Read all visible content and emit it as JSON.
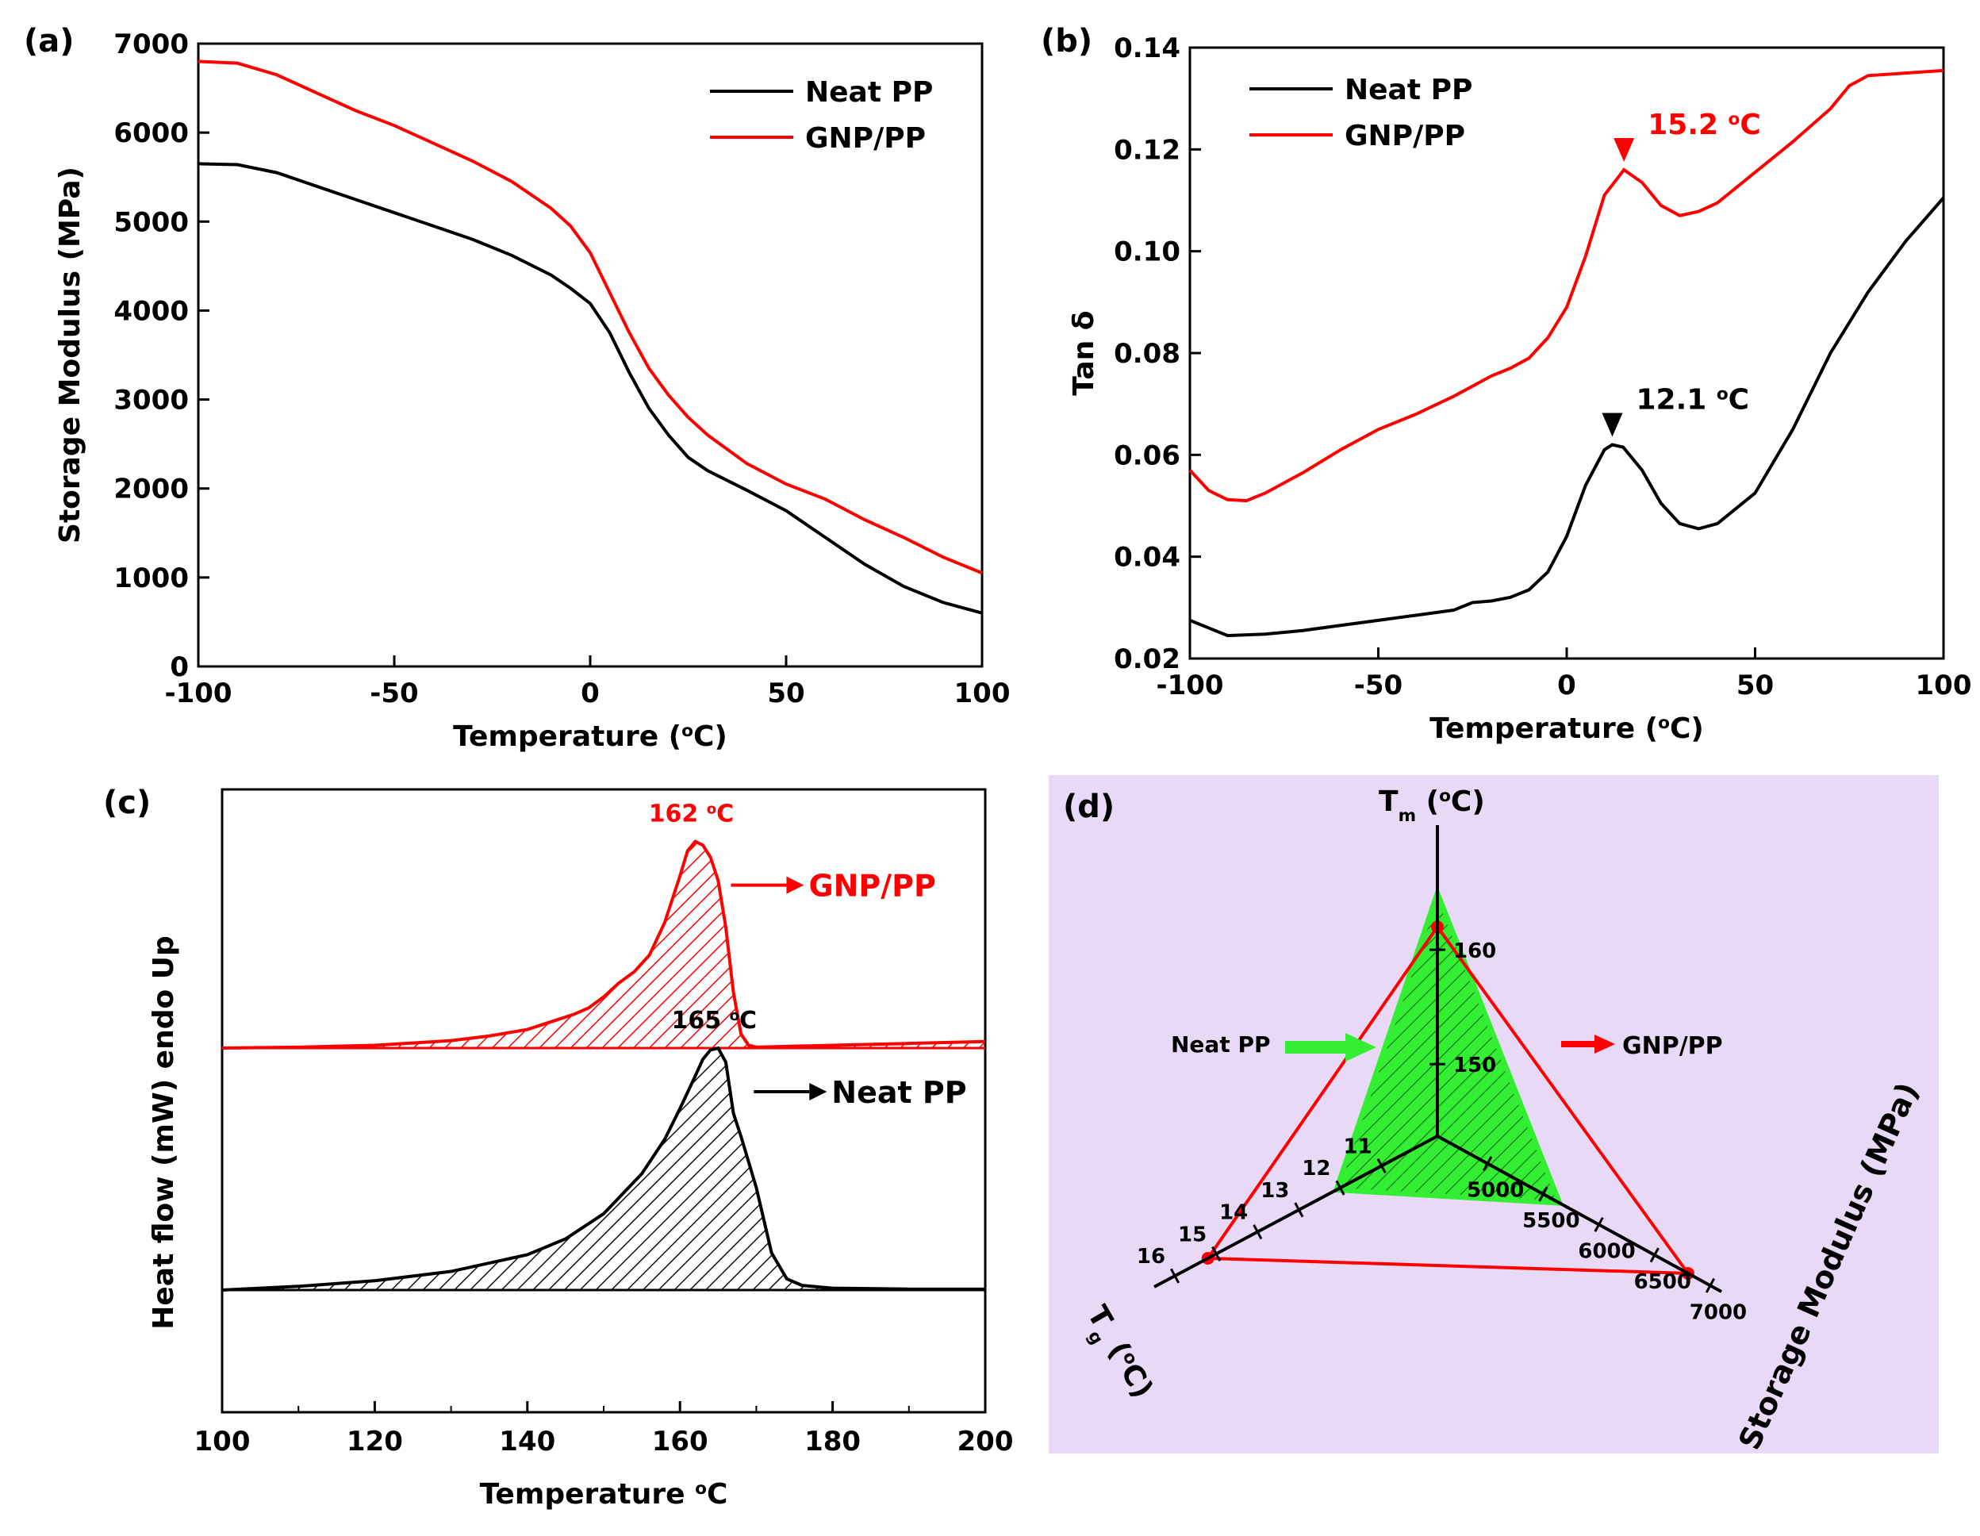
{
  "colors": {
    "neat": "#000000",
    "gnp": "#ff0000",
    "green": "#33ee33",
    "panel_d_bg": "#e8daf6"
  },
  "chart_data": [
    {
      "panel": "(a)",
      "type": "line",
      "xlabel_main": "Temperature (",
      "xlabel_sup": "o",
      "xlabel_end": "C)",
      "ylabel": "Storage Modulus (MPa)",
      "xlim": [
        -100,
        100
      ],
      "ylim": [
        0,
        7000
      ],
      "xticks": [
        -100,
        -50,
        0,
        50,
        100
      ],
      "yticks": [
        0,
        1000,
        2000,
        3000,
        4000,
        5000,
        6000,
        7000
      ],
      "legend": "top-right",
      "series": [
        {
          "name": "Neat PP",
          "key": "neat",
          "x": [
            -100,
            -90,
            -80,
            -70,
            -60,
            -50,
            -40,
            -30,
            -20,
            -10,
            -5,
            0,
            5,
            10,
            15,
            20,
            25,
            30,
            40,
            50,
            60,
            70,
            80,
            90,
            100
          ],
          "y": [
            5650,
            5640,
            5550,
            5400,
            5250,
            5100,
            4950,
            4800,
            4620,
            4400,
            4250,
            4080,
            3750,
            3300,
            2900,
            2600,
            2350,
            2200,
            1980,
            1750,
            1450,
            1150,
            900,
            720,
            600
          ]
        },
        {
          "name": "GNP/PP",
          "key": "gnp",
          "x": [
            -100,
            -90,
            -80,
            -70,
            -60,
            -50,
            -40,
            -30,
            -20,
            -10,
            -5,
            0,
            5,
            10,
            15,
            20,
            25,
            30,
            40,
            50,
            60,
            70,
            80,
            90,
            100
          ],
          "y": [
            6800,
            6780,
            6650,
            6450,
            6250,
            6080,
            5880,
            5680,
            5450,
            5150,
            4950,
            4650,
            4200,
            3750,
            3350,
            3050,
            2800,
            2600,
            2280,
            2050,
            1880,
            1650,
            1450,
            1230,
            1050
          ]
        }
      ]
    },
    {
      "panel": "(b)",
      "type": "line",
      "xlabel_main": "Temperature (",
      "xlabel_sup": "o",
      "xlabel_end": "C)",
      "ylabel": "Tan δ",
      "xlim": [
        -100,
        100
      ],
      "ylim": [
        0.02,
        0.14
      ],
      "xticks": [
        -100,
        -50,
        0,
        50,
        100
      ],
      "yticks": [
        0.02,
        0.04,
        0.06,
        0.08,
        0.1,
        0.12,
        0.14
      ],
      "ytick_labels": [
        "0.02",
        "0.04",
        "0.06",
        "0.08",
        "0.10",
        "0.12",
        "0.14"
      ],
      "legend": "top-left",
      "series": [
        {
          "name": "Neat PP",
          "key": "neat",
          "x": [
            -100,
            -90,
            -80,
            -70,
            -60,
            -50,
            -40,
            -30,
            -25,
            -20,
            -15,
            -10,
            -5,
            0,
            5,
            10,
            12.1,
            15,
            20,
            25,
            30,
            35,
            40,
            50,
            60,
            70,
            80,
            90,
            100
          ],
          "y": [
            0.0275,
            0.0245,
            0.0248,
            0.0255,
            0.0265,
            0.0275,
            0.0285,
            0.0295,
            0.031,
            0.0313,
            0.032,
            0.0335,
            0.037,
            0.044,
            0.054,
            0.061,
            0.062,
            0.0615,
            0.057,
            0.0505,
            0.0465,
            0.0455,
            0.0465,
            0.0525,
            0.065,
            0.08,
            0.092,
            0.102,
            0.1105
          ]
        },
        {
          "name": "GNP/PP",
          "key": "gnp",
          "x": [
            -100,
            -95,
            -90,
            -85,
            -80,
            -70,
            -60,
            -50,
            -40,
            -30,
            -20,
            -15,
            -10,
            -5,
            0,
            5,
            10,
            15.2,
            20,
            25,
            30,
            35,
            40,
            50,
            60,
            70,
            75,
            80,
            90,
            100
          ],
          "y": [
            0.057,
            0.053,
            0.0512,
            0.051,
            0.0525,
            0.0565,
            0.061,
            0.065,
            0.068,
            0.0715,
            0.0755,
            0.077,
            0.079,
            0.083,
            0.089,
            0.099,
            0.111,
            0.116,
            0.1135,
            0.109,
            0.107,
            0.1078,
            0.1095,
            0.1155,
            0.1215,
            0.128,
            0.1325,
            0.1345,
            0.135,
            0.1355
          ]
        }
      ],
      "annotations": [
        {
          "text": "15.2 ",
          "sup": "o",
          "end": "C",
          "x": 15.2,
          "y": 0.116,
          "key": "gnp"
        },
        {
          "text": "12.1 ",
          "sup": "o",
          "end": "C",
          "x": 12.1,
          "y": 0.062,
          "key": "neat"
        }
      ]
    },
    {
      "panel": "(c)",
      "type": "area",
      "xlabel_main": "Temperature ",
      "xlabel_sup": "o",
      "xlabel_end": "C",
      "ylabel": "Heat flow (mW) endo Up",
      "xlim": [
        100,
        200
      ],
      "xticks": [
        100,
        120,
        140,
        160,
        180,
        200
      ],
      "series": [
        {
          "name": "GNP/PP",
          "key": "gnp",
          "baseline": 2.6,
          "x": [
            100,
            110,
            120,
            130,
            135,
            140,
            143,
            146,
            148,
            150,
            152,
            154,
            156,
            158,
            160,
            161,
            162,
            163,
            164,
            165,
            166,
            167,
            168,
            169,
            170,
            175,
            180,
            190,
            200
          ],
          "y": [
            2.6,
            2.61,
            2.63,
            2.68,
            2.73,
            2.8,
            2.88,
            2.96,
            3.03,
            3.15,
            3.3,
            3.42,
            3.6,
            3.95,
            4.45,
            4.72,
            4.82,
            4.78,
            4.65,
            4.4,
            3.9,
            3.2,
            2.75,
            2.63,
            2.61,
            2.62,
            2.63,
            2.65,
            2.67
          ],
          "label": "GNP/PP",
          "peak_label": "162 ",
          "peak_sup": "o",
          "peak_end": "C",
          "peak_x": 162
        },
        {
          "name": "Neat PP",
          "key": "neat",
          "baseline": 0,
          "x": [
            100,
            110,
            120,
            130,
            140,
            145,
            150,
            155,
            158,
            160,
            162,
            163,
            164,
            165,
            166,
            167,
            168,
            170,
            172,
            174,
            176,
            180,
            190,
            200
          ],
          "y": [
            0,
            0.04,
            0.1,
            0.2,
            0.38,
            0.55,
            0.82,
            1.25,
            1.62,
            1.95,
            2.3,
            2.48,
            2.58,
            2.6,
            2.45,
            1.9,
            1.65,
            1.1,
            0.4,
            0.12,
            0.05,
            0.02,
            0.01,
            0.01
          ],
          "label": "Neat PP",
          "peak_label": "165 ",
          "peak_sup": "o",
          "peak_end": "C",
          "peak_x": 165
        }
      ]
    },
    {
      "panel": "(d)",
      "type": "radar",
      "axes": [
        {
          "key": "tm",
          "title_main": "T",
          "title_sub": "m",
          "title_rest": " (",
          "title_sup": "o",
          "title_end": "C)",
          "ticks": [
            "150",
            "160"
          ]
        },
        {
          "key": "tg",
          "title_main": "T",
          "title_sub": "g",
          "title_rest": " (",
          "title_sup": "o",
          "title_end": "C)",
          "ticks": [
            "11",
            "12",
            "13",
            "14",
            "15",
            "16"
          ]
        },
        {
          "key": "sm",
          "title_main": "Storage Modulus (MPa)",
          "ticks": [
            "5000",
            "5500",
            "6000",
            "6500",
            "7000"
          ]
        }
      ],
      "series": [
        {
          "name": "Neat PP",
          "key": "green",
          "tm": 165,
          "tg": 12.1,
          "sm": 5650
        },
        {
          "name": "GNP/PP",
          "key": "gnp",
          "tm": 162,
          "tg": 15.2,
          "sm": 6800
        }
      ]
    }
  ]
}
